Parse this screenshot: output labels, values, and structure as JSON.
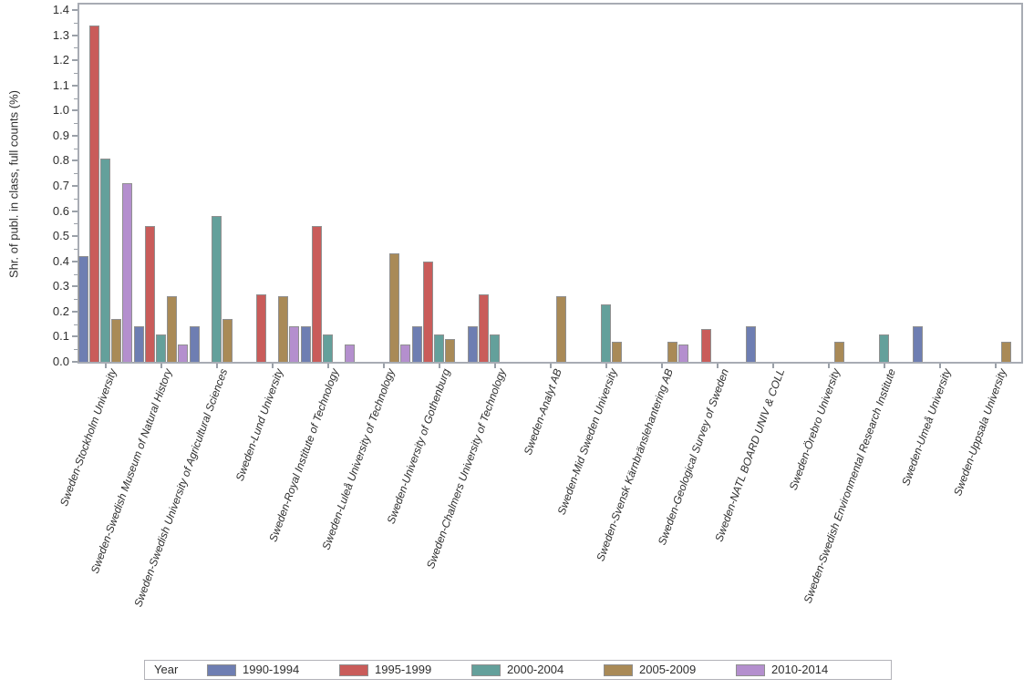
{
  "chart_data": {
    "type": "bar",
    "title": "",
    "xlabel": "",
    "ylabel": "Shr. of publ. in class, full counts (%)",
    "ylim": [
      0.0,
      1.4
    ],
    "y_tick_step": 0.1,
    "y_minor_tick_step": 0.05,
    "grid": false,
    "legend_title": "Year",
    "legend_position": "bottom",
    "x_label_rotation_deg": -70,
    "categories": [
      "Sweden-Stockholm University",
      "Sweden-Swedish Museum of Natural History",
      "Sweden-Swedish University of Agricultural Sciences",
      "Sweden-Lund University",
      "Sweden-Royal Institute of Technology",
      "Sweden-Luleå University of Technology",
      "Sweden-University of Gothenburg",
      "Sweden-Chalmers University of Technology",
      "Sweden-Analyt AB",
      "Sweden-Mid Sweden University",
      "Sweden-Svensk Kärnbränslehantering AB",
      "Sweden-Geological Survey of Sweden",
      "Sweden-NATL BOARD UNIV & COLL",
      "Sweden-Örebro University",
      "Sweden-Swedish Environmental Research Institute",
      "Sweden-Umeå University",
      "Sweden-Uppsala University"
    ],
    "series": [
      {
        "name": "1990-1994",
        "color": "#6e7eb2",
        "values": [
          0.42,
          0.14,
          0.14,
          null,
          0.14,
          null,
          0.14,
          0.14,
          null,
          null,
          null,
          null,
          0.14,
          null,
          null,
          0.14,
          null
        ]
      },
      {
        "name": "1995-1999",
        "color": "#c95c5a",
        "values": [
          1.34,
          0.54,
          null,
          0.27,
          0.54,
          null,
          0.4,
          0.27,
          null,
          null,
          null,
          0.13,
          null,
          null,
          null,
          null,
          null
        ]
      },
      {
        "name": "2000-2004",
        "color": "#64a09b",
        "values": [
          0.81,
          0.11,
          0.58,
          null,
          0.11,
          null,
          0.11,
          0.11,
          null,
          0.23,
          null,
          null,
          null,
          null,
          0.11,
          null,
          null
        ]
      },
      {
        "name": "2005-2009",
        "color": "#a98a57",
        "values": [
          0.17,
          0.26,
          0.17,
          0.26,
          null,
          0.43,
          0.09,
          null,
          0.26,
          0.08,
          0.08,
          null,
          null,
          0.08,
          null,
          null,
          0.08
        ]
      },
      {
        "name": "2010-2014",
        "color": "#b48fce",
        "values": [
          0.71,
          0.07,
          null,
          0.14,
          0.07,
          0.07,
          null,
          null,
          null,
          null,
          0.07,
          null,
          null,
          null,
          null,
          null,
          null
        ]
      }
    ]
  }
}
